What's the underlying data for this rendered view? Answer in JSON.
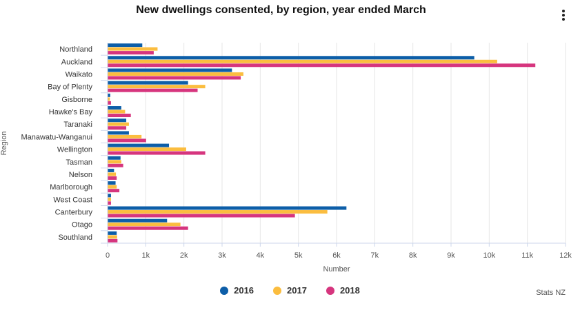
{
  "chart_data": {
    "type": "bar",
    "orientation": "horizontal",
    "title": "New dwellings consented, by region, year ended March",
    "xlabel": "Number",
    "ylabel": "Region",
    "xlim": [
      0,
      12000
    ],
    "x_ticks": [
      0,
      1000,
      2000,
      3000,
      4000,
      5000,
      6000,
      7000,
      8000,
      9000,
      10000,
      11000,
      12000
    ],
    "x_tick_labels": [
      "0",
      "1k",
      "2k",
      "3k",
      "4k",
      "5k",
      "6k",
      "7k",
      "8k",
      "9k",
      "10k",
      "11k",
      "12k"
    ],
    "categories": [
      "Northland",
      "Auckland",
      "Waikato",
      "Bay of Plenty",
      "Gisborne",
      "Hawke's Bay",
      "Taranaki",
      "Manawatu-Wanganui",
      "Wellington",
      "Tasman",
      "Nelson",
      "Marlborough",
      "West Coast",
      "Canterbury",
      "Otago",
      "Southland"
    ],
    "series": [
      {
        "name": "2016",
        "color": "#0d5ea8",
        "values": [
          900,
          9600,
          3250,
          2100,
          60,
          350,
          480,
          550,
          1600,
          330,
          160,
          200,
          80,
          6250,
          1550,
          230
        ]
      },
      {
        "name": "2017",
        "color": "#fbbd3f",
        "values": [
          1300,
          10200,
          3550,
          2550,
          50,
          450,
          550,
          880,
          2050,
          350,
          210,
          230,
          80,
          5750,
          1900,
          240
        ]
      },
      {
        "name": "2018",
        "color": "#d6357e",
        "values": [
          1200,
          11200,
          3480,
          2350,
          80,
          600,
          480,
          1000,
          2550,
          400,
          230,
          300,
          80,
          4900,
          2100,
          250
        ]
      }
    ],
    "grid": true,
    "legend_position": "bottom-center"
  },
  "menu_icon": "vertical-ellipsis-icon",
  "credit": "Stats NZ"
}
